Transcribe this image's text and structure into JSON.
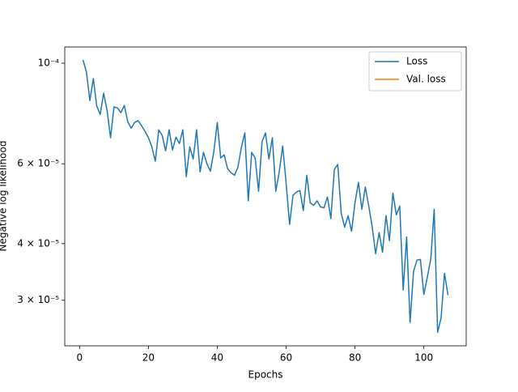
{
  "chart_data": {
    "type": "line",
    "xlabel": "Epochs",
    "ylabel": "Negative log likelihood",
    "x": [
      1,
      2,
      3,
      4,
      5,
      6,
      7,
      8,
      9,
      10,
      11,
      12,
      13,
      14,
      15,
      16,
      17,
      18,
      19,
      20,
      21,
      22,
      23,
      24,
      25,
      26,
      27,
      28,
      29,
      30,
      31,
      32,
      33,
      34,
      35,
      36,
      37,
      38,
      39,
      40,
      41,
      42,
      43,
      44,
      45,
      46,
      47,
      48,
      49,
      50,
      51,
      52,
      53,
      54,
      55,
      56,
      57,
      58,
      59,
      60,
      61,
      62,
      63,
      64,
      65,
      66,
      67,
      68,
      69,
      70,
      71,
      72,
      73,
      74,
      75,
      76,
      77,
      78,
      79,
      80,
      81,
      82,
      83,
      84,
      85,
      86,
      87,
      88,
      89,
      90,
      91,
      92,
      93,
      94,
      95,
      96,
      97,
      98,
      99,
      100,
      101,
      102,
      103,
      104,
      105,
      106,
      107
    ],
    "series": [
      {
        "name": "Loss",
        "color": "#1f77b4",
        "values": [
          0.0001017,
          9.56e-05,
          8.27e-05,
          9.25e-05,
          8.04e-05,
          7.71e-05,
          8.59e-05,
          7.87e-05,
          6.85e-05,
          8.01e-05,
          7.97e-05,
          7.78e-05,
          8.07e-05,
          7.43e-05,
          7.19e-05,
          7.4e-05,
          7.47e-05,
          7.28e-05,
          7.08e-05,
          6.85e-05,
          6.54e-05,
          6.08e-05,
          7.13e-05,
          6.93e-05,
          6.41e-05,
          7.13e-05,
          6.44e-05,
          6.87e-05,
          6.65e-05,
          7.13e-05,
          5.62e-05,
          6.54e-05,
          6.15e-05,
          7.13e-05,
          5.76e-05,
          6.36e-05,
          6e-05,
          5.78e-05,
          6.38e-05,
          7.4e-05,
          6.18e-05,
          6.28e-05,
          5.85e-05,
          5.73e-05,
          5.66e-05,
          5.9e-05,
          6.52e-05,
          7.02e-05,
          4.97e-05,
          6.36e-05,
          6.18e-05,
          5.22e-05,
          6.71e-05,
          7.02e-05,
          6.15e-05,
          6.85e-05,
          5.22e-05,
          5.76e-05,
          6.57e-05,
          5.44e-05,
          4.41e-05,
          5.11e-05,
          5.2e-05,
          5.24e-05,
          4.73e-05,
          5.66e-05,
          4.92e-05,
          4.86e-05,
          4.97e-05,
          4.82e-05,
          4.8e-05,
          5.07e-05,
          4.54e-05,
          5.83e-05,
          5.98e-05,
          4.67e-05,
          4.35e-05,
          4.61e-05,
          4.26e-05,
          4.92e-05,
          5.46e-05,
          4.76e-05,
          5.33e-05,
          4.84e-05,
          4.35e-05,
          3.8e-05,
          4.23e-05,
          3.83e-05,
          4.61e-05,
          4.06e-05,
          5.17e-05,
          4.63e-05,
          4.84e-05,
          3.16e-05,
          4.14e-05,
          2.68e-05,
          3.47e-05,
          3.68e-05,
          3.69e-05,
          3.09e-05,
          3.37e-05,
          3.69e-05,
          4.76e-05,
          2.55e-05,
          2.74e-05,
          3.44e-05,
          3.08e-05
        ]
      },
      {
        "name": "Val. loss",
        "color": "#ff7f0e",
        "values": [
          null,
          null,
          null,
          null,
          null,
          null,
          null,
          null,
          null,
          null,
          null,
          null,
          null,
          null,
          null,
          null,
          null,
          null,
          null,
          null,
          null,
          null,
          null,
          null,
          null,
          null,
          null,
          null,
          null,
          null,
          null,
          null,
          null,
          null,
          null,
          null,
          null,
          null,
          null,
          null,
          null,
          null,
          null,
          null,
          null,
          null,
          null,
          null,
          null,
          null,
          null,
          null,
          null,
          null,
          null,
          null,
          null,
          null,
          null,
          null,
          null,
          null,
          null,
          null,
          null,
          null,
          null,
          null,
          null,
          null,
          null,
          null,
          null,
          null,
          null,
          null,
          null,
          null,
          null,
          null,
          null,
          null,
          null,
          null,
          null,
          null,
          null,
          null,
          null,
          null,
          null,
          null,
          null,
          null,
          null,
          null,
          null,
          null,
          null,
          null,
          null,
          null,
          null,
          null,
          null,
          null,
          null
        ]
      }
    ],
    "xlim": [
      -4.3,
      112.3
    ],
    "xticks": [
      0,
      20,
      40,
      60,
      80,
      100
    ],
    "ylim": [
      2.38e-05,
      0.0001086
    ],
    "yscale": "log",
    "yticks": [
      {
        "value": 0.0001,
        "label": "10⁻⁴"
      },
      {
        "value": 6e-05,
        "label": "6 × 10⁻⁵"
      },
      {
        "value": 4e-05,
        "label": "4 × 10⁻⁵"
      },
      {
        "value": 3e-05,
        "label": "3 × 10⁻⁵"
      }
    ],
    "legend": "upper right",
    "grid": false
  }
}
